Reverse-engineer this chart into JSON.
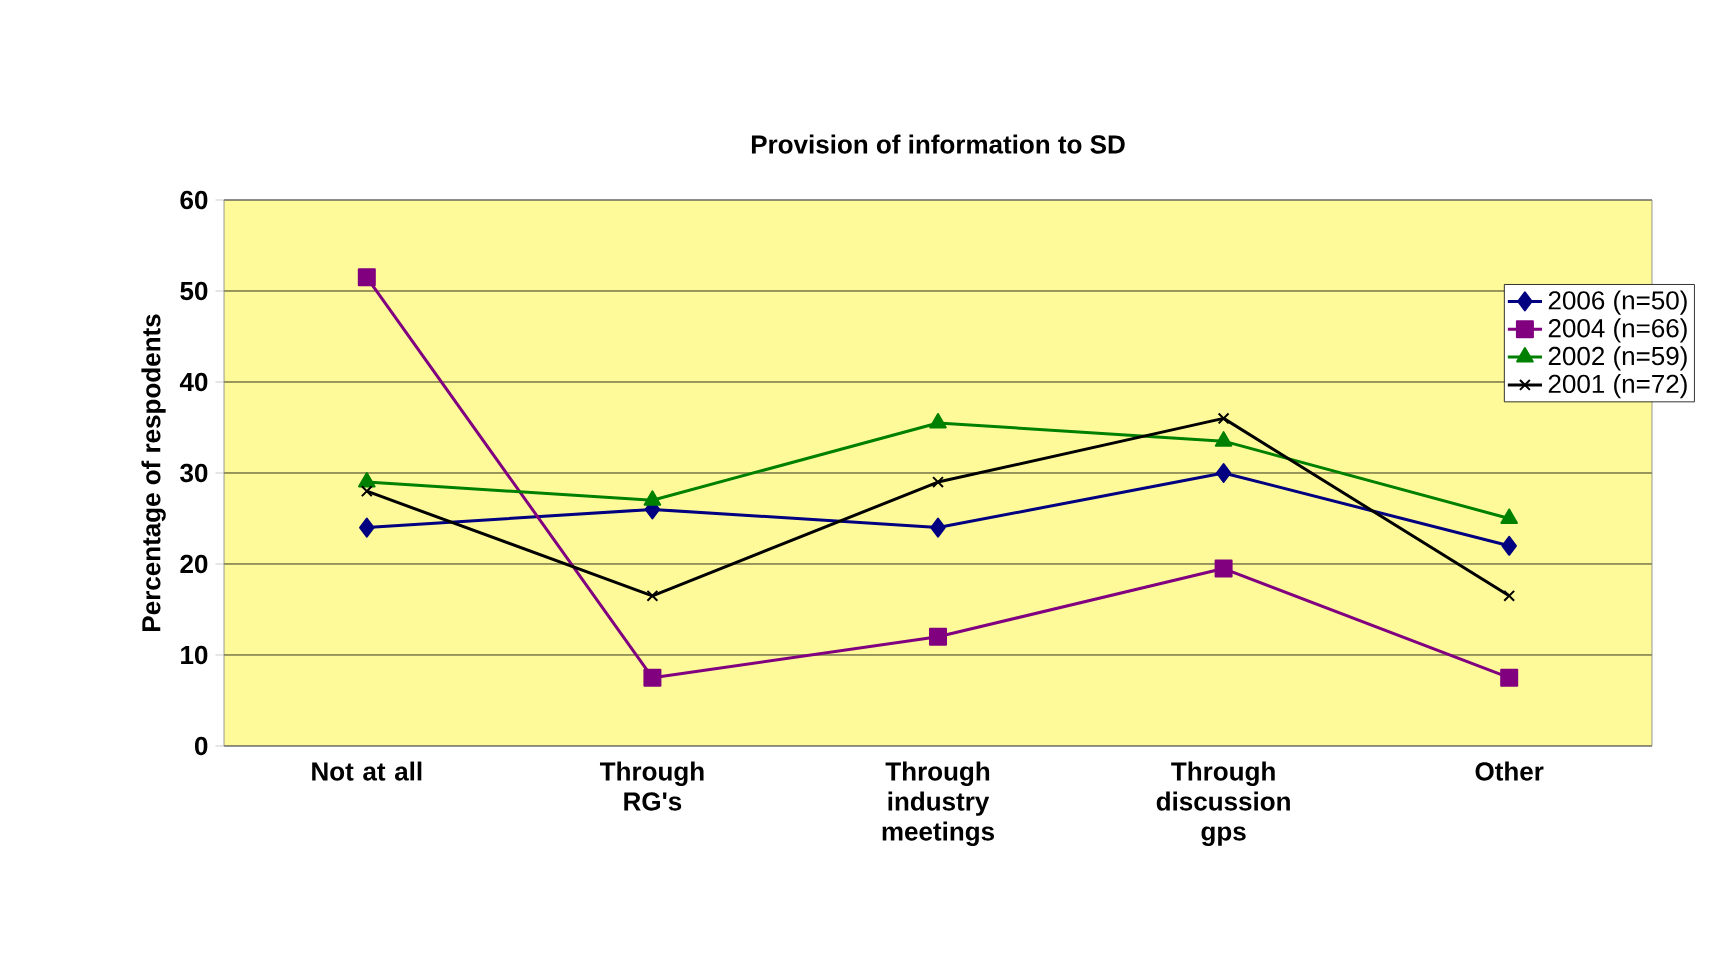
{
  "chart_data": {
    "type": "line",
    "title": "Provision of information to SD",
    "ylabel": "Percentage of respodents",
    "categories": [
      "Not at all",
      "Through RG's",
      "Through industry meetings",
      "Through discussion gps",
      "Other"
    ],
    "series": [
      {
        "name": "2006 (n=50)",
        "color": "#000080",
        "marker": "diamond",
        "values": [
          24,
          26,
          24,
          30,
          22
        ]
      },
      {
        "name": "2004 (n=66)",
        "color": "#800080",
        "marker": "square",
        "values": [
          51.5,
          7.5,
          12,
          19.5,
          7.5
        ]
      },
      {
        "name": "2002 (n=59)",
        "color": "#008000",
        "marker": "triangle",
        "values": [
          29,
          27,
          35.5,
          33.5,
          25
        ]
      },
      {
        "name": "2001 (n=72)",
        "color": "#000000",
        "marker": "cross",
        "values": [
          28,
          16.5,
          29,
          36,
          16.5
        ]
      }
    ],
    "ylim": [
      0,
      60
    ],
    "yticks": [
      0,
      10,
      20,
      30,
      40,
      50,
      60
    ],
    "grid": "y",
    "legend": "top right"
  }
}
